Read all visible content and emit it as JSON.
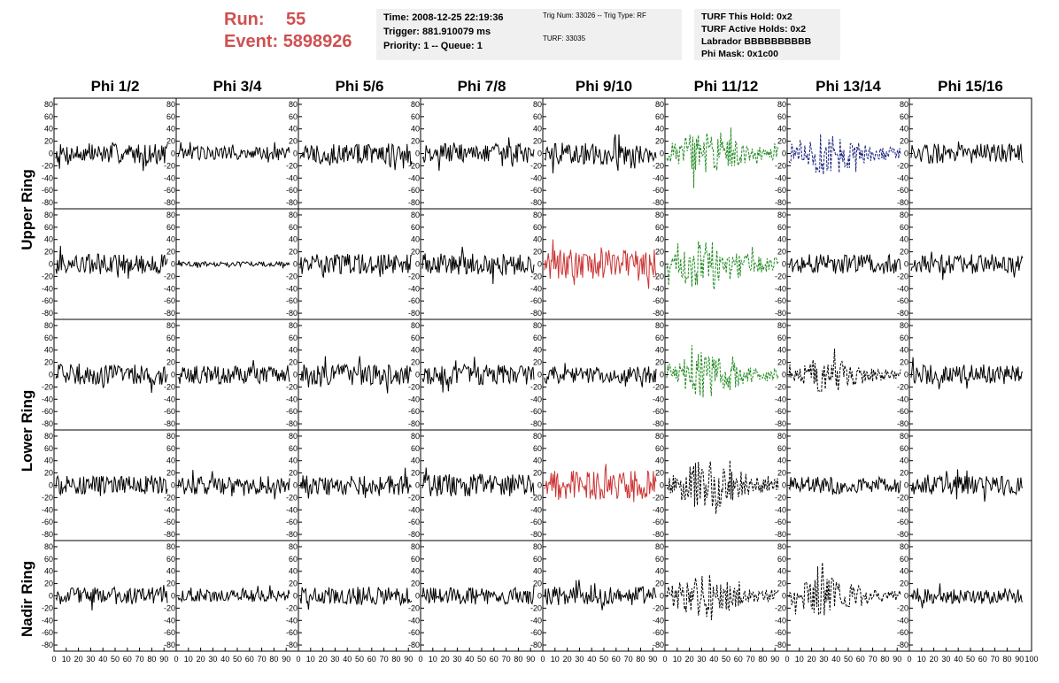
{
  "header": {
    "run_label": "Run:",
    "run_value": "55",
    "event_label": "Event:",
    "event_value": "5898926",
    "time": "Time: 2008-12-25 22:19:36",
    "trigger": "Trigger: 881.910079 ms",
    "priority": "Priority: 1 -- Queue: 1",
    "trig_num": "Trig Num: 33026 -- Trig Type: RF",
    "turf": "TURF: 33035",
    "turf_hold": "TURF This Hold: 0x2",
    "turf_active": "TURF Active Holds: 0x2",
    "labrador": "Labrador BBBBBBBBBB",
    "phi_mask": "Phi Mask: 0x1c00"
  },
  "chart_data": {
    "type": "line",
    "columns": [
      "Phi 1/2",
      "Phi 3/4",
      "Phi 5/6",
      "Phi 7/8",
      "Phi 9/10",
      "Phi 11/12",
      "Phi 13/14",
      "Phi 15/16"
    ],
    "rows": [
      "Upper Ring",
      "Lower Ring",
      "Nadir Ring"
    ],
    "ylim": [
      -90,
      90
    ],
    "yticks": [
      80,
      60,
      40,
      20,
      0,
      -20,
      -40,
      -60,
      -80
    ],
    "xlim": [
      0,
      100
    ],
    "xticks": [
      0,
      10,
      20,
      30,
      40,
      50,
      60,
      70,
      80,
      90,
      100
    ],
    "colors": {
      "normal": "#000000",
      "triggered_red": "#cc3333",
      "triggered_green": "#228b22",
      "triggered_blue": "#1a237e",
      "title_red": "#d05050"
    },
    "panels": [
      {
        "row": 0,
        "col": 0,
        "amp": 16,
        "color": "#000000",
        "style": "solid"
      },
      {
        "row": 0,
        "col": 1,
        "amp": 11,
        "color": "#000000",
        "style": "solid"
      },
      {
        "row": 0,
        "col": 2,
        "amp": 17,
        "color": "#000000",
        "style": "solid"
      },
      {
        "row": 0,
        "col": 3,
        "amp": 16,
        "color": "#000000",
        "style": "solid"
      },
      {
        "row": 0,
        "col": 4,
        "amp": 18,
        "color": "#000000",
        "style": "solid"
      },
      {
        "row": 0,
        "col": 5,
        "amp": 30,
        "color": "#228b22",
        "style": "dashed"
      },
      {
        "row": 0,
        "col": 6,
        "amp": 28,
        "color": "#1a237e",
        "style": "dashed"
      },
      {
        "row": 0,
        "col": 7,
        "amp": 16,
        "color": "#000000",
        "style": "solid"
      },
      {
        "row": 1,
        "col": 0,
        "amp": 17,
        "color": "#000000",
        "style": "solid"
      },
      {
        "row": 1,
        "col": 1,
        "amp": 4,
        "color": "#000000",
        "style": "solid"
      },
      {
        "row": 1,
        "col": 2,
        "amp": 17,
        "color": "#000000",
        "style": "solid"
      },
      {
        "row": 1,
        "col": 3,
        "amp": 18,
        "color": "#000000",
        "style": "solid"
      },
      {
        "row": 1,
        "col": 4,
        "amp": 24,
        "color": "#cc3333",
        "style": "solid"
      },
      {
        "row": 1,
        "col": 5,
        "amp": 35,
        "color": "#228b22",
        "style": "dashed"
      },
      {
        "row": 1,
        "col": 6,
        "amp": 16,
        "color": "#000000",
        "style": "solid"
      },
      {
        "row": 1,
        "col": 7,
        "amp": 16,
        "color": "#000000",
        "style": "solid"
      },
      {
        "row": 2,
        "col": 0,
        "amp": 17,
        "color": "#000000",
        "style": "solid"
      },
      {
        "row": 2,
        "col": 1,
        "amp": 15,
        "color": "#000000",
        "style": "solid"
      },
      {
        "row": 2,
        "col": 2,
        "amp": 17,
        "color": "#000000",
        "style": "solid"
      },
      {
        "row": 2,
        "col": 3,
        "amp": 17,
        "color": "#000000",
        "style": "solid"
      },
      {
        "row": 2,
        "col": 4,
        "amp": 14,
        "color": "#000000",
        "style": "solid"
      },
      {
        "row": 2,
        "col": 5,
        "amp": 30,
        "color": "#228b22",
        "style": "dashed"
      },
      {
        "row": 2,
        "col": 6,
        "amp": 24,
        "color": "#000000",
        "style": "dashed"
      },
      {
        "row": 2,
        "col": 7,
        "amp": 16,
        "color": "#000000",
        "style": "solid"
      },
      {
        "row": 3,
        "col": 0,
        "amp": 15,
        "color": "#000000",
        "style": "solid"
      },
      {
        "row": 3,
        "col": 1,
        "amp": 15,
        "color": "#000000",
        "style": "solid"
      },
      {
        "row": 3,
        "col": 2,
        "amp": 16,
        "color": "#000000",
        "style": "solid"
      },
      {
        "row": 3,
        "col": 3,
        "amp": 18,
        "color": "#000000",
        "style": "solid"
      },
      {
        "row": 3,
        "col": 4,
        "amp": 24,
        "color": "#cc3333",
        "style": "solid"
      },
      {
        "row": 3,
        "col": 5,
        "amp": 32,
        "color": "#000000",
        "style": "dashed"
      },
      {
        "row": 3,
        "col": 6,
        "amp": 14,
        "color": "#000000",
        "style": "solid"
      },
      {
        "row": 3,
        "col": 7,
        "amp": 15,
        "color": "#000000",
        "style": "solid"
      },
      {
        "row": 4,
        "col": 0,
        "amp": 14,
        "color": "#000000",
        "style": "solid"
      },
      {
        "row": 4,
        "col": 1,
        "amp": 10,
        "color": "#000000",
        "style": "solid"
      },
      {
        "row": 4,
        "col": 2,
        "amp": 15,
        "color": "#000000",
        "style": "solid"
      },
      {
        "row": 4,
        "col": 3,
        "amp": 14,
        "color": "#000000",
        "style": "solid"
      },
      {
        "row": 4,
        "col": 4,
        "amp": 15,
        "color": "#000000",
        "style": "solid"
      },
      {
        "row": 4,
        "col": 5,
        "amp": 28,
        "color": "#000000",
        "style": "dashed"
      },
      {
        "row": 4,
        "col": 6,
        "amp": 26,
        "color": "#000000",
        "style": "dashed"
      },
      {
        "row": 4,
        "col": 7,
        "amp": 13,
        "color": "#000000",
        "style": "solid"
      }
    ]
  }
}
